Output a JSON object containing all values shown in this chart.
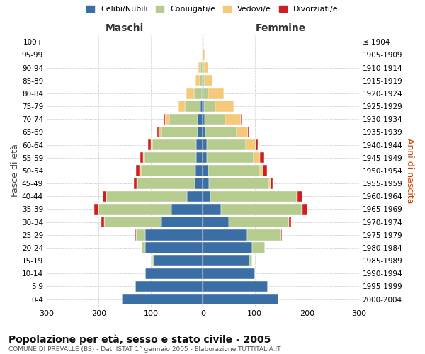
{
  "age_groups": [
    "0-4",
    "5-9",
    "10-14",
    "15-19",
    "20-24",
    "25-29",
    "30-34",
    "35-39",
    "40-44",
    "45-49",
    "50-54",
    "55-59",
    "60-64",
    "65-69",
    "70-74",
    "75-79",
    "80-84",
    "85-89",
    "90-94",
    "95-99",
    "100+"
  ],
  "birth_years": [
    "2000-2004",
    "1995-1999",
    "1990-1994",
    "1985-1989",
    "1980-1984",
    "1975-1979",
    "1970-1974",
    "1965-1969",
    "1960-1964",
    "1955-1959",
    "1950-1954",
    "1945-1949",
    "1940-1944",
    "1935-1939",
    "1930-1934",
    "1925-1929",
    "1920-1924",
    "1915-1919",
    "1910-1914",
    "1905-1909",
    "≤ 1904"
  ],
  "colors": {
    "celibe": "#3a6ea5",
    "coniugato": "#b5cc8e",
    "vedovo": "#f5c87a",
    "divorziato": "#cc2020"
  },
  "male": {
    "celibe": [
      155,
      130,
      110,
      95,
      110,
      110,
      80,
      60,
      30,
      16,
      14,
      12,
      12,
      10,
      10,
      5,
      2,
      1,
      1,
      0,
      0
    ],
    "coniugato": [
      0,
      0,
      0,
      2,
      8,
      18,
      110,
      140,
      155,
      110,
      105,
      100,
      85,
      70,
      55,
      30,
      15,
      5,
      3,
      0,
      0
    ],
    "vedovo": [
      0,
      0,
      0,
      0,
      0,
      0,
      0,
      0,
      0,
      1,
      2,
      3,
      3,
      5,
      8,
      12,
      15,
      8,
      4,
      1,
      0
    ],
    "divorziato": [
      0,
      0,
      0,
      0,
      0,
      2,
      5,
      8,
      8,
      5,
      8,
      5,
      5,
      2,
      2,
      0,
      0,
      0,
      0,
      0,
      0
    ]
  },
  "female": {
    "nubile": [
      145,
      125,
      100,
      90,
      95,
      85,
      50,
      35,
      15,
      12,
      10,
      8,
      8,
      5,
      3,
      2,
      1,
      1,
      0,
      0,
      0
    ],
    "coniugata": [
      0,
      0,
      0,
      5,
      25,
      65,
      115,
      155,
      165,
      115,
      100,
      90,
      75,
      60,
      40,
      22,
      10,
      3,
      2,
      0,
      0
    ],
    "vedova": [
      0,
      0,
      0,
      0,
      0,
      0,
      0,
      1,
      2,
      3,
      5,
      12,
      18,
      22,
      30,
      35,
      30,
      14,
      8,
      3,
      1
    ],
    "divorziata": [
      0,
      0,
      0,
      0,
      0,
      2,
      5,
      10,
      10,
      5,
      8,
      8,
      5,
      3,
      2,
      0,
      0,
      0,
      0,
      0,
      0
    ]
  },
  "xlim": 300,
  "title": "Popolazione per età, sesso e stato civile - 2005",
  "subtitle": "COMUNE DI PREVALLE (BS) - Dati ISTAT 1° gennaio 2005 - Elaborazione TUTTITALIA.IT",
  "ylabel_left": "Fasce di età",
  "ylabel_right": "Anni di nascita",
  "xlabel_left": "Maschi",
  "xlabel_right": "Femmine",
  "legend_labels": [
    "Celibi/Nubili",
    "Coniugati/e",
    "Vedovi/e",
    "Divorziati/e"
  ],
  "background_color": "#ffffff",
  "grid_color": "#cccccc",
  "title_fontsize": 10,
  "subtitle_fontsize": 6.5,
  "tick_fontsize": 7.5
}
